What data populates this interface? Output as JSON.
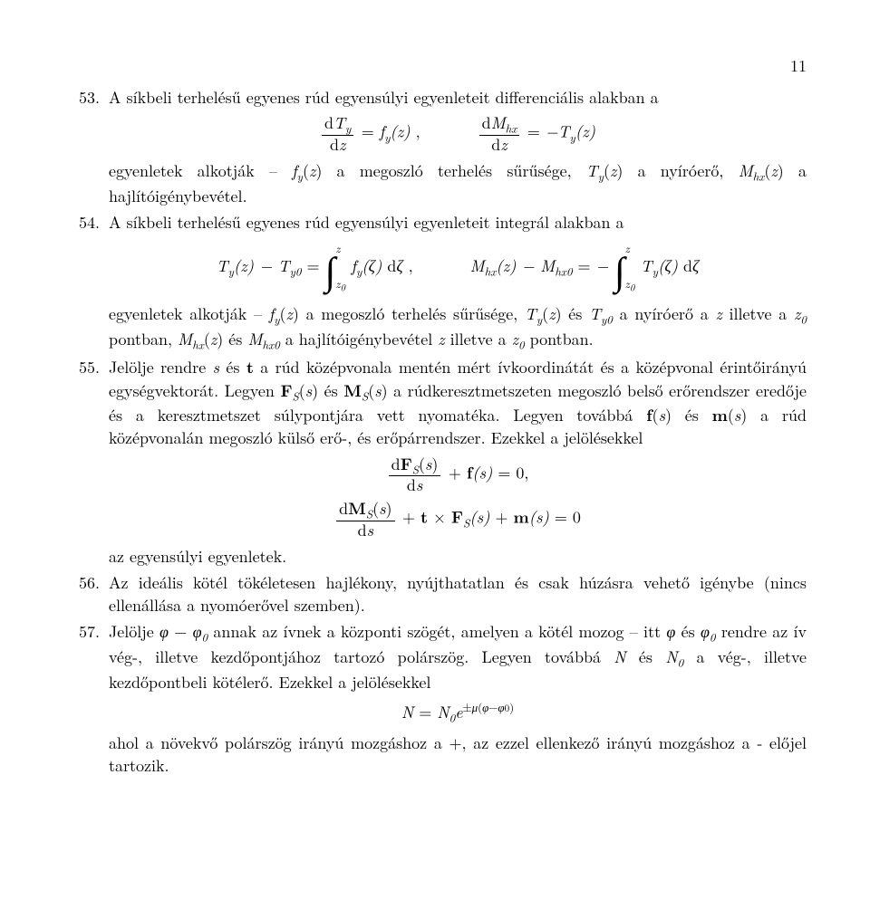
{
  "page_number": "11",
  "font": {
    "family": "Computer Modern / Latin Modern",
    "size_pt": 12,
    "color": "#000000"
  },
  "background": "#ffffff",
  "items": {
    "53": {
      "text1": "A síkbeli terhelésű egyenes rúd egyensúlyi egyenleteit differenciális alakban a",
      "eq1_tex": "\\frac{dT_y}{dz}=f_y(z),\\qquad \\frac{dM_{hx}}{dz}=-T_y(z)",
      "text2_part1": "egyenletek alkotják – ",
      "text2_fy": "f",
      "text2_fy_sub": "y",
      "text2_part2": "(z) a megoszló terhelés sűrűsége, ",
      "text2_Ty": "T",
      "text2_Ty_sub": "y",
      "text2_part3": "(z) a nyíróerő, ",
      "text2_Mhx": "M",
      "text2_Mhx_sub": "hx",
      "text2_part4": "(z) a hajlítóigénybevétel."
    },
    "54": {
      "text1": "A síkbeli terhelésű egyenes rúd egyensúlyi egyenleteit integrál alakban a",
      "eq1_tex": "T_y(z)-T_{y0}=\\int_{z_0}^{z} f_y(\\zeta)\\,d\\zeta,\\qquad M_{hx}(z)-M_{hx0}=-\\int_{z_0}^{z} T_y(\\zeta)\\,d\\zeta",
      "text2": "egyenletek alkotják – f_y(z) a megoszló terhelés sűrűsége, T_y(z) és T_{y0} a nyíróerő a z illetve a z_0 pontban, M_{hx}(z) és M_{hx0} a hajlítóigénybevétel z illetve a z_0 pontban."
    },
    "55": {
      "text1": "Jelölje rendre s és t a rúd középvonala mentén mért ívkoordinátát és a középvonal érintőirányú egységvektorát. Legyen F_S(s) és M_S(s) a rúdkeresztmetszeten megoszló belső erőrendszer eredője és a keresztmetszet súlypontjára vett nyomatéka. Legyen továbbá f(s) és m(s) a rúd középvonalán megoszló külső erő-, és erőpárrendszer. Ezekkel a jelölésekkel",
      "eq1_tex": "\\frac{d\\mathbf{F}_S(s)}{ds}+\\mathbf{f}(s)=0,",
      "eq2_tex": "\\frac{d\\mathbf{M}_S(s)}{ds}+\\mathbf{t}\\times\\mathbf{F}_S(s)+\\mathbf{m}(s)=0",
      "text2": "az egyensúlyi egyenletek."
    },
    "56": {
      "text1": "Az ideális kötél tökéletesen hajlékony, nyújthatatlan és csak húzásra vehető igénybe (nincs ellenállása a nyomóerővel szemben)."
    },
    "57": {
      "text1": "Jelölje φ − φ_0 annak az ívnek a központi szögét, amelyen a kötél mozog – itt φ és φ_0 rendre az ív vég-, illetve kezdőpontjához tartozó polárszög. Legyen továbbá N és N_0 a vég-, illetve kezdőpontbeli kötélerő. Ezekkel a jelölésekkel",
      "eq1_tex": "N=N_0 e^{\\pm\\mu(\\varphi-\\varphi_0)}",
      "text2": "ahol a növekvő polárszög irányú mozgáshoz a +, az ezzel ellenkező irányú mozgáshoz a - előjel tartozik."
    }
  },
  "labels": {
    "n53": "53.",
    "n54": "54.",
    "n55": "55.",
    "n56": "56.",
    "n57": "57."
  }
}
